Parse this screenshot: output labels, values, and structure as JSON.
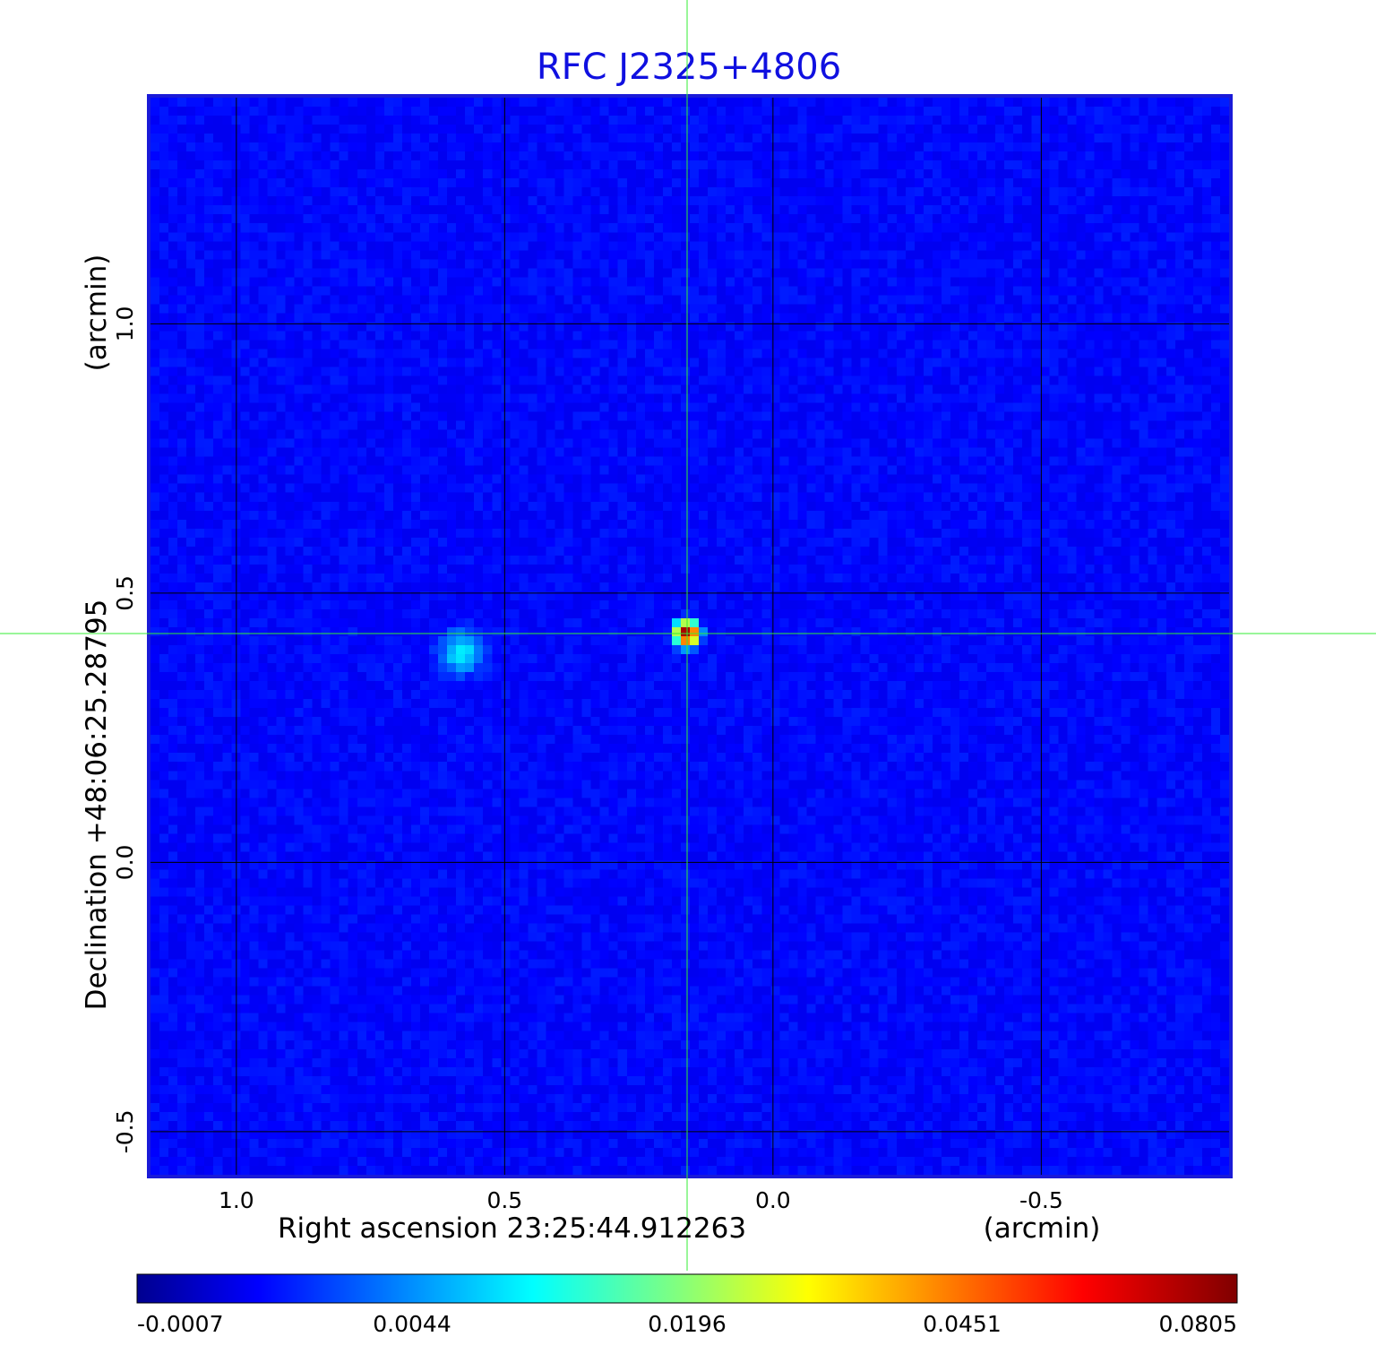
{
  "chart_data": {
    "type": "heatmap",
    "title": "RFC J2325+4806",
    "title_color": "#1010e0",
    "xlabel": "Right ascension  23:25:44.912263",
    "xlabel_unit": "(arcmin)",
    "ylabel": "Declination  +48:06:25.28795",
    "ylabel_unit": "(arcmin)",
    "x_axis": {
      "ticks": [
        1.0,
        0.5,
        0.0,
        -0.5
      ],
      "tick_labels": [
        "1.0",
        "0.5",
        "0.0",
        "-0.5"
      ],
      "lim": [
        1.16,
        -0.85
      ],
      "direction": "decreasing"
    },
    "y_axis": {
      "ticks": [
        1.0,
        0.5,
        0.0,
        -0.5
      ],
      "tick_labels": [
        "1.0",
        "0.5",
        "0.0",
        "-0.5"
      ],
      "lim": [
        -0.58,
        1.42
      ]
    },
    "grid": true,
    "grid_color": "#000000",
    "crosshair": {
      "x": 0.16,
      "y": 0.425,
      "color": "#33ee33"
    },
    "sources": [
      {
        "x": 0.16,
        "y": 0.425,
        "peak": 0.0805,
        "sigma": 0.012
      },
      {
        "x": 0.58,
        "y": 0.39,
        "peak": 0.006,
        "sigma": 0.025
      }
    ],
    "background_level": -0.0003,
    "colormap": "jet",
    "colorbar": {
      "ticks": [
        -0.0007,
        0.0044,
        0.0196,
        0.0451,
        0.0805
      ],
      "tick_labels": [
        "-0.0007",
        "0.0044",
        "0.0196",
        "0.0451",
        "0.0805"
      ]
    },
    "colors": {
      "low": "#0000a8",
      "background": "#1035f0",
      "peak": "#c00000"
    }
  }
}
